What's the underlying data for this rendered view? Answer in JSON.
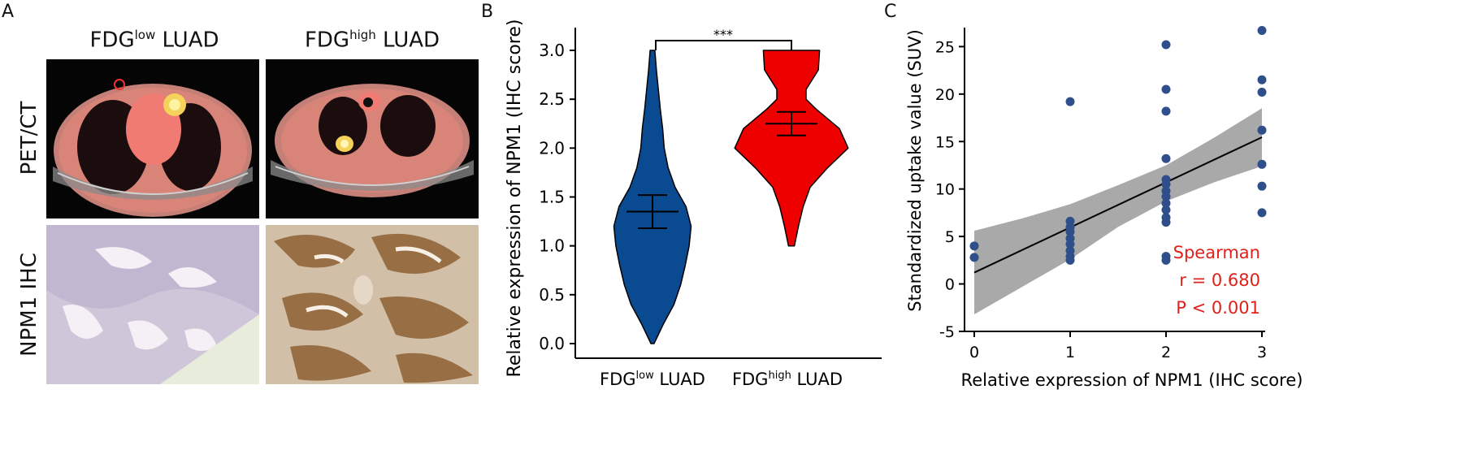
{
  "panels": {
    "a": {
      "letter": "A",
      "col_titles": [
        {
          "base": "FDG",
          "sup": "low",
          "rest": " LUAD"
        },
        {
          "base": "FDG",
          "sup": "high",
          "rest": " LUAD"
        }
      ],
      "row_labels": [
        "PET/CT",
        "NPM1 IHC"
      ]
    },
    "b": {
      "letter": "B"
    },
    "c": {
      "letter": "C"
    }
  },
  "colors": {
    "low_violin": "#0a4a91",
    "high_violin": "#ef0000",
    "scatter_point": "#2f4f8a",
    "ci_band": "#a9a9a9",
    "annotation": "#e0201b"
  },
  "chart_data": [
    {
      "type": "violin",
      "ylabel": "Relative expression of NPM1 (IHC score)",
      "xlabel": "",
      "ylim": [
        0,
        3
      ],
      "yticks": [
        "0.0",
        "0.5",
        "1.0",
        "1.5",
        "2.0",
        "2.5",
        "3.0"
      ],
      "categories": [
        {
          "base": "FDG",
          "sup": "low",
          "rest": " LUAD"
        },
        {
          "base": "FDG",
          "sup": "high",
          "rest": " LUAD"
        }
      ],
      "groups": [
        {
          "mean": 1.35,
          "err_low": 1.18,
          "err_high": 1.52,
          "range": [
            0.0,
            3.0
          ],
          "density": [
            [
              0.0,
              0.04
            ],
            [
              0.2,
              0.28
            ],
            [
              0.4,
              0.55
            ],
            [
              0.6,
              0.72
            ],
            [
              0.8,
              0.84
            ],
            [
              1.0,
              0.94
            ],
            [
              1.2,
              0.99
            ],
            [
              1.4,
              0.86
            ],
            [
              1.6,
              0.58
            ],
            [
              1.8,
              0.4
            ],
            [
              2.0,
              0.3
            ],
            [
              2.2,
              0.26
            ],
            [
              2.4,
              0.2
            ],
            [
              2.6,
              0.15
            ],
            [
              2.8,
              0.1
            ],
            [
              3.0,
              0.06
            ]
          ]
        },
        {
          "mean": 2.25,
          "err_low": 2.13,
          "err_high": 2.37,
          "range": [
            1.0,
            3.0
          ],
          "density": [
            [
              1.0,
              0.05
            ],
            [
              1.2,
              0.12
            ],
            [
              1.4,
              0.2
            ],
            [
              1.6,
              0.32
            ],
            [
              1.8,
              0.62
            ],
            [
              2.0,
              0.97
            ],
            [
              2.2,
              0.82
            ],
            [
              2.4,
              0.42
            ],
            [
              2.5,
              0.25
            ],
            [
              2.6,
              0.25
            ],
            [
              2.8,
              0.46
            ],
            [
              3.0,
              0.48
            ]
          ]
        }
      ],
      "significance": "***"
    },
    {
      "type": "scatter",
      "xlabel": "Relative expression of NPM1 (IHC score)",
      "ylabel": "Standardized uptake value (SUV)",
      "xlim": [
        0,
        3
      ],
      "ylim": [
        -5,
        27
      ],
      "xticks": [
        "0",
        "1",
        "2",
        "3"
      ],
      "yticks": [
        "-5",
        "0",
        "5",
        "10",
        "15",
        "20",
        "25"
      ],
      "points": [
        [
          0,
          4.0
        ],
        [
          0,
          2.8
        ],
        [
          1,
          19.2
        ],
        [
          1,
          6.6
        ],
        [
          1,
          6.0
        ],
        [
          1,
          5.5
        ],
        [
          1,
          4.8
        ],
        [
          1,
          4.2
        ],
        [
          1,
          3.5
        ],
        [
          1,
          2.9
        ],
        [
          1,
          2.5
        ],
        [
          2,
          25.2
        ],
        [
          2,
          20.5
        ],
        [
          2,
          18.2
        ],
        [
          2,
          13.2
        ],
        [
          2,
          11.0
        ],
        [
          2,
          10.5
        ],
        [
          2,
          9.8
        ],
        [
          2,
          9.2
        ],
        [
          2,
          8.5
        ],
        [
          2,
          7.8
        ],
        [
          2,
          7.0
        ],
        [
          2,
          6.5
        ],
        [
          2,
          2.9
        ],
        [
          2,
          2.5
        ],
        [
          3,
          26.7
        ],
        [
          3,
          21.5
        ],
        [
          3,
          20.2
        ],
        [
          3,
          16.2
        ],
        [
          3,
          12.6
        ],
        [
          3,
          10.3
        ],
        [
          3,
          7.5
        ]
      ],
      "fit": {
        "slope": 4.75,
        "intercept": 1.2
      },
      "ci_band": [
        [
          0,
          -3.2,
          5.6
        ],
        [
          0.5,
          -0.3,
          6.9
        ],
        [
          1,
          2.6,
          8.4
        ],
        [
          1.5,
          6.0,
          10.4
        ],
        [
          2,
          8.7,
          12.5
        ],
        [
          2.5,
          10.7,
          15.4
        ],
        [
          3,
          12.4,
          18.5
        ]
      ],
      "annotation": [
        "Spearman",
        "r = 0.680",
        "P < 0.001"
      ]
    }
  ]
}
